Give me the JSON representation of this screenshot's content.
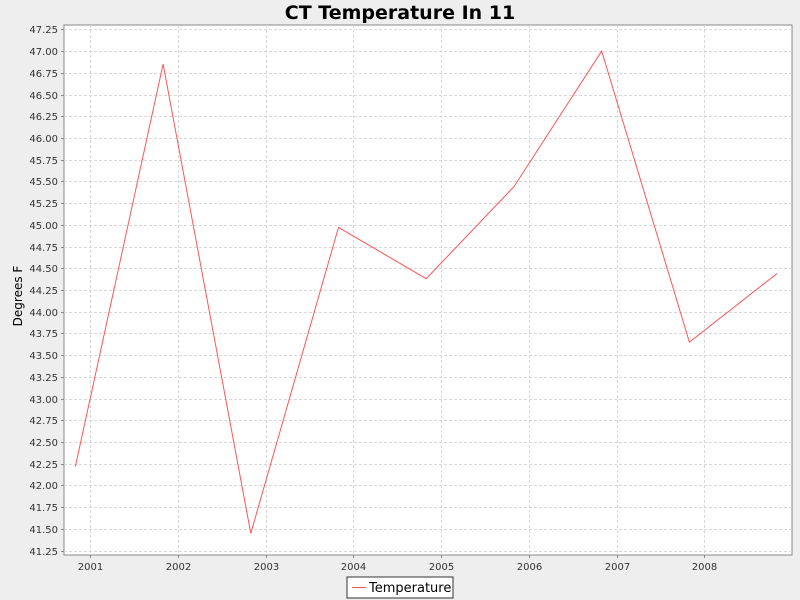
{
  "chart_data": {
    "type": "line",
    "title": "CT Temperature In 11",
    "xlabel": "",
    "ylabel": "Degrees F",
    "x_ticks": [
      "2001",
      "2002",
      "2003",
      "2004",
      "2005",
      "2006",
      "2007",
      "2008"
    ],
    "x_range": [
      2000.7,
      2009.0
    ],
    "ylim": [
      41.2,
      47.3
    ],
    "y_tick_step": 0.25,
    "grid": true,
    "legend_position": "bottom-center",
    "series": [
      {
        "name": "Temperature",
        "color": "#ff5555",
        "points": [
          {
            "x": 2000.83,
            "y": 42.22
          },
          {
            "x": 2001.83,
            "y": 46.85
          },
          {
            "x": 2002.83,
            "y": 41.45
          },
          {
            "x": 2003.83,
            "y": 44.97
          },
          {
            "x": 2004.83,
            "y": 44.38
          },
          {
            "x": 2005.83,
            "y": 45.44
          },
          {
            "x": 2006.83,
            "y": 47.0
          },
          {
            "x": 2007.83,
            "y": 43.65
          },
          {
            "x": 2008.83,
            "y": 44.44
          }
        ]
      }
    ]
  }
}
